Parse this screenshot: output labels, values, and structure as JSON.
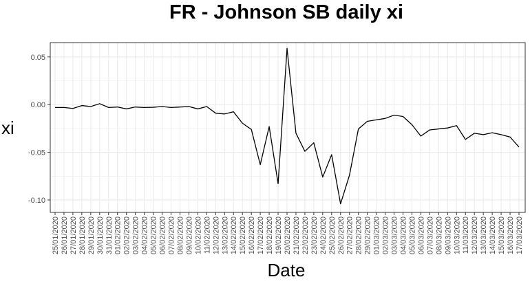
{
  "chart_data": {
    "type": "line",
    "title": "FR - Johnson SB daily xi",
    "xlabel": "Date",
    "ylabel": "xi",
    "ylim": [
      -0.113,
      0.065
    ],
    "yticks": [
      0.05,
      0.0,
      -0.05,
      -0.1
    ],
    "ytick_labels": [
      "0.05",
      "0.00",
      "-0.05",
      "-0.10"
    ],
    "grid": true,
    "categories": [
      "25/01/2020",
      "26/01/2020",
      "27/01/2020",
      "28/01/2020",
      "29/01/2020",
      "30/01/2020",
      "31/01/2020",
      "01/02/2020",
      "02/02/2020",
      "03/02/2020",
      "04/02/2020",
      "05/02/2020",
      "06/02/2020",
      "07/02/2020",
      "08/02/2020",
      "09/02/2020",
      "10/02/2020",
      "11/02/2020",
      "12/02/2020",
      "13/02/2020",
      "14/02/2020",
      "15/02/2020",
      "16/02/2020",
      "17/02/2020",
      "18/02/2020",
      "19/02/2020",
      "20/02/2020",
      "21/02/2020",
      "22/02/2020",
      "23/02/2020",
      "24/02/2020",
      "25/02/2020",
      "26/02/2020",
      "27/02/2020",
      "28/02/2020",
      "29/02/2020",
      "01/03/2020",
      "02/03/2020",
      "03/03/2020",
      "04/03/2020",
      "05/03/2020",
      "06/03/2020",
      "07/03/2020",
      "08/03/2020",
      "09/03/2020",
      "10/03/2020",
      "11/03/2020",
      "12/03/2020",
      "13/03/2020",
      "14/03/2020",
      "15/03/2020",
      "16/03/2020",
      "17/03/2020"
    ],
    "series": [
      {
        "values": [
          -0.003,
          -0.003,
          -0.004,
          -0.001,
          -0.002,
          0.001,
          -0.003,
          -0.0025,
          -0.0045,
          -0.0025,
          -0.003,
          -0.0028,
          -0.002,
          -0.003,
          -0.0025,
          -0.002,
          -0.0045,
          -0.002,
          -0.009,
          -0.0098,
          -0.0075,
          -0.0195,
          -0.026,
          -0.063,
          -0.023,
          -0.083,
          0.059,
          -0.03,
          -0.049,
          -0.04,
          -0.076,
          -0.0525,
          -0.104,
          -0.074,
          -0.0255,
          -0.0175,
          -0.016,
          -0.0145,
          -0.011,
          -0.0125,
          -0.021,
          -0.033,
          -0.0265,
          -0.0255,
          -0.0245,
          -0.022,
          -0.0365,
          -0.03,
          -0.0315,
          -0.0295,
          -0.0315,
          -0.034,
          -0.0445
        ]
      }
    ],
    "colors": {
      "line": "#000000",
      "grid": "#ebebeb",
      "axis_text": "#4d4d4d",
      "panel_border": "#333333"
    }
  }
}
